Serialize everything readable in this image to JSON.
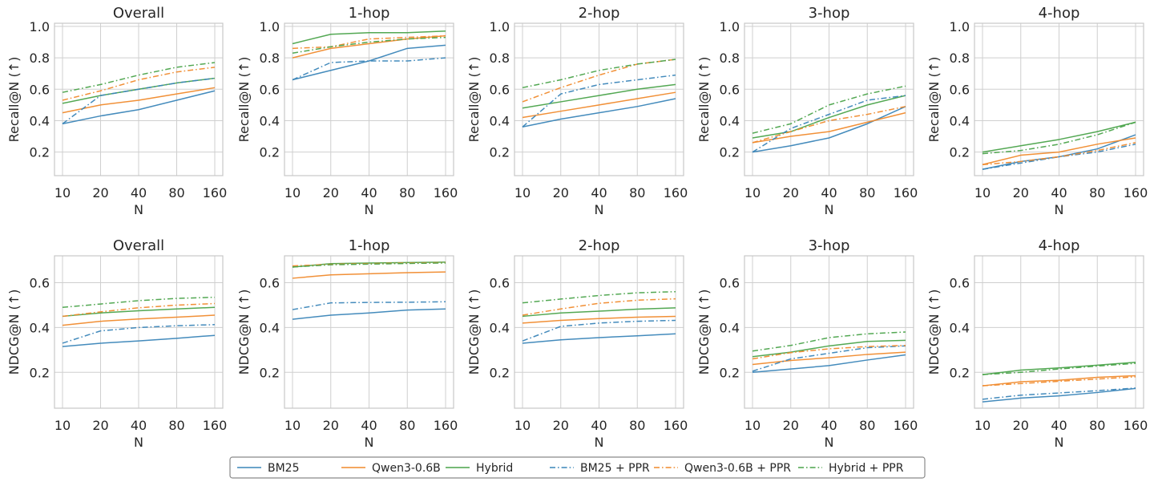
{
  "chart_data": {
    "type": "line",
    "x": [
      10,
      20,
      40,
      80,
      160
    ],
    "xlabel": "N",
    "xscale": "log",
    "legend": {
      "position": "bottom-center"
    },
    "series_meta": [
      {
        "name": "BM25",
        "color": "#3a85b8",
        "dash": "solid"
      },
      {
        "name": "Qwen3-0.6B",
        "color": "#f08a2c",
        "dash": "solid"
      },
      {
        "name": "Hybrid",
        "color": "#4aa34a",
        "dash": "solid"
      },
      {
        "name": "BM25 + PPR",
        "color": "#3a85b8",
        "dash": "dashdot"
      },
      {
        "name": "Qwen3-0.6B + PPR",
        "color": "#f08a2c",
        "dash": "dashdot"
      },
      {
        "name": "Hybrid + PPR",
        "color": "#4aa34a",
        "dash": "dashdot"
      }
    ],
    "rows": [
      {
        "ylabel": "Recall@N (↑)",
        "ylim": [
          0.05,
          1.02
        ],
        "yticks": [
          0.2,
          0.4,
          0.6,
          0.8,
          1.0
        ],
        "ytick_labels": [
          "0.2",
          "0.4",
          "0.6",
          "0.8",
          "1.0"
        ],
        "panels": [
          {
            "title": "Overall",
            "series": [
              [
                0.38,
                0.43,
                0.47,
                0.53,
                0.59
              ],
              [
                0.45,
                0.5,
                0.53,
                0.57,
                0.61
              ],
              [
                0.51,
                0.56,
                0.6,
                0.64,
                0.67
              ],
              [
                0.38,
                0.56,
                0.6,
                0.64,
                0.67
              ],
              [
                0.53,
                0.59,
                0.66,
                0.71,
                0.74
              ],
              [
                0.58,
                0.63,
                0.69,
                0.74,
                0.77
              ]
            ]
          },
          {
            "title": "1-hop",
            "series": [
              [
                0.66,
                0.72,
                0.78,
                0.86,
                0.88
              ],
              [
                0.8,
                0.86,
                0.89,
                0.92,
                0.94
              ],
              [
                0.89,
                0.95,
                0.96,
                0.96,
                0.97
              ],
              [
                0.66,
                0.77,
                0.78,
                0.78,
                0.8
              ],
              [
                0.86,
                0.87,
                0.92,
                0.93,
                0.94
              ],
              [
                0.83,
                0.87,
                0.9,
                0.92,
                0.93
              ]
            ]
          },
          {
            "title": "2-hop",
            "series": [
              [
                0.36,
                0.41,
                0.45,
                0.49,
                0.54
              ],
              [
                0.42,
                0.46,
                0.5,
                0.54,
                0.58
              ],
              [
                0.48,
                0.52,
                0.56,
                0.6,
                0.63
              ],
              [
                0.36,
                0.57,
                0.63,
                0.66,
                0.69
              ],
              [
                0.52,
                0.61,
                0.69,
                0.76,
                0.79
              ],
              [
                0.61,
                0.66,
                0.72,
                0.76,
                0.79
              ]
            ]
          },
          {
            "title": "3-hop",
            "series": [
              [
                0.2,
                0.24,
                0.29,
                0.38,
                0.49
              ],
              [
                0.26,
                0.3,
                0.33,
                0.39,
                0.45
              ],
              [
                0.29,
                0.33,
                0.42,
                0.5,
                0.56
              ],
              [
                0.2,
                0.35,
                0.44,
                0.53,
                0.56
              ],
              [
                0.26,
                0.33,
                0.4,
                0.44,
                0.49
              ],
              [
                0.32,
                0.38,
                0.5,
                0.57,
                0.62
              ]
            ]
          },
          {
            "title": "4-hop",
            "series": [
              [
                0.09,
                0.14,
                0.17,
                0.22,
                0.31
              ],
              [
                0.12,
                0.18,
                0.2,
                0.25,
                0.29
              ],
              [
                0.2,
                0.24,
                0.28,
                0.33,
                0.39
              ],
              [
                0.09,
                0.13,
                0.17,
                0.2,
                0.25
              ],
              [
                0.12,
                0.14,
                0.17,
                0.21,
                0.26
              ],
              [
                0.19,
                0.21,
                0.25,
                0.31,
                0.39
              ]
            ]
          }
        ]
      },
      {
        "ylabel": "NDCG@N (↑)",
        "ylim": [
          0.04,
          0.72
        ],
        "yticks": [
          0.2,
          0.4,
          0.6
        ],
        "ytick_labels": [
          "0.2",
          "0.4",
          "0.6"
        ],
        "panels": [
          {
            "title": "Overall",
            "series": [
              [
                0.315,
                0.33,
                0.34,
                0.352,
                0.365
              ],
              [
                0.41,
                0.428,
                0.438,
                0.446,
                0.455
              ],
              [
                0.45,
                0.465,
                0.475,
                0.483,
                0.49
              ],
              [
                0.33,
                0.385,
                0.4,
                0.408,
                0.413
              ],
              [
                0.45,
                0.47,
                0.488,
                0.5,
                0.507
              ],
              [
                0.49,
                0.505,
                0.52,
                0.53,
                0.535
              ]
            ]
          },
          {
            "title": "1-hop",
            "series": [
              [
                0.437,
                0.455,
                0.465,
                0.478,
                0.483
              ],
              [
                0.62,
                0.635,
                0.64,
                0.645,
                0.648
              ],
              [
                0.67,
                0.685,
                0.688,
                0.69,
                0.692
              ],
              [
                0.48,
                0.51,
                0.512,
                0.513,
                0.515
              ],
              [
                0.675,
                0.682,
                0.685,
                0.688,
                0.69
              ],
              [
                0.67,
                0.68,
                0.683,
                0.686,
                0.688
              ]
            ]
          },
          {
            "title": "2-hop",
            "series": [
              [
                0.33,
                0.345,
                0.355,
                0.363,
                0.372
              ],
              [
                0.42,
                0.432,
                0.44,
                0.446,
                0.45
              ],
              [
                0.45,
                0.465,
                0.473,
                0.482,
                0.488
              ],
              [
                0.34,
                0.405,
                0.42,
                0.428,
                0.432
              ],
              [
                0.455,
                0.483,
                0.508,
                0.522,
                0.528
              ],
              [
                0.51,
                0.527,
                0.543,
                0.555,
                0.56
              ]
            ]
          },
          {
            "title": "3-hop",
            "series": [
              [
                0.2,
                0.215,
                0.23,
                0.255,
                0.278
              ],
              [
                0.235,
                0.253,
                0.265,
                0.28,
                0.29
              ],
              [
                0.27,
                0.29,
                0.318,
                0.338,
                0.343
              ],
              [
                0.205,
                0.26,
                0.285,
                0.31,
                0.318
              ],
              [
                0.26,
                0.288,
                0.305,
                0.315,
                0.32
              ],
              [
                0.295,
                0.32,
                0.355,
                0.372,
                0.38
              ]
            ]
          },
          {
            "title": "4-hop",
            "series": [
              [
                0.068,
                0.085,
                0.095,
                0.11,
                0.128
              ],
              [
                0.14,
                0.158,
                0.165,
                0.178,
                0.185
              ],
              [
                0.19,
                0.21,
                0.22,
                0.232,
                0.245
              ],
              [
                0.08,
                0.098,
                0.108,
                0.118,
                0.13
              ],
              [
                0.14,
                0.15,
                0.16,
                0.17,
                0.18
              ],
              [
                0.19,
                0.2,
                0.215,
                0.228,
                0.24
              ]
            ]
          }
        ]
      }
    ]
  }
}
